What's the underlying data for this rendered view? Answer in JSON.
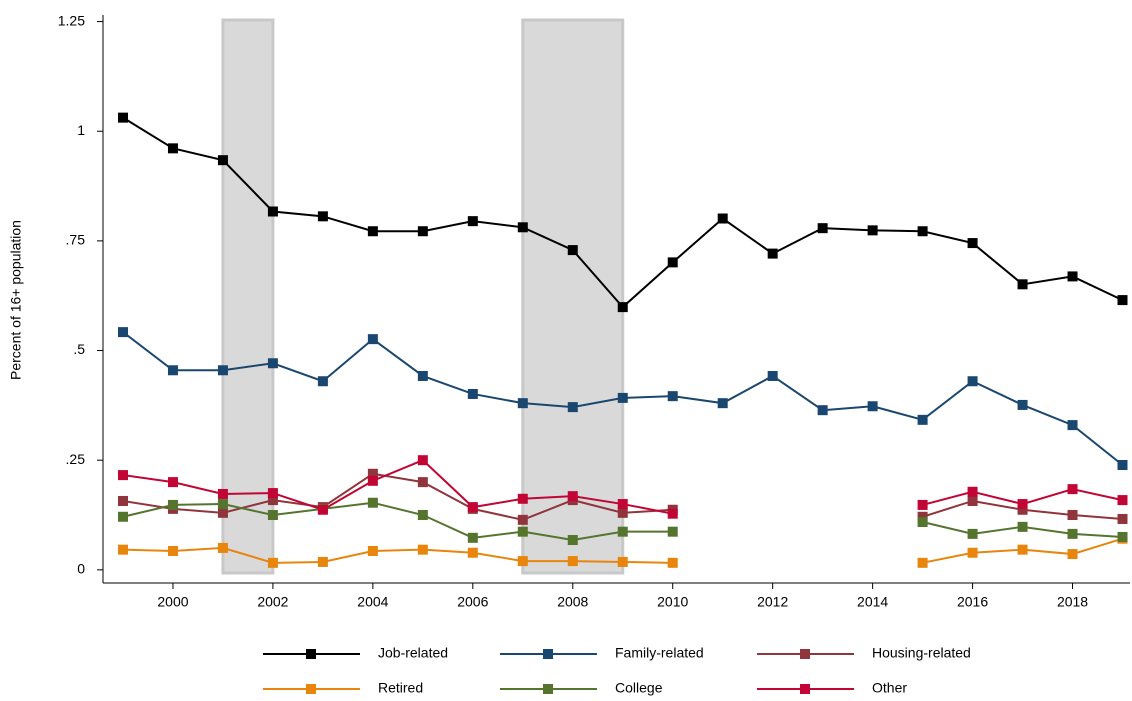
{
  "chart_data": {
    "type": "line",
    "y_label": "Percent of 16+ population",
    "x": [
      1999,
      2000,
      2001,
      2002,
      2003,
      2004,
      2005,
      2006,
      2007,
      2008,
      2009,
      2010,
      2011,
      2012,
      2013,
      2014,
      2015,
      2016,
      2017,
      2018,
      2019
    ],
    "series": [
      {
        "name": "Job-related",
        "color": "#000000",
        "values": [
          1.031,
          0.961,
          0.934,
          0.817,
          0.806,
          0.772,
          0.772,
          0.795,
          0.781,
          0.729,
          0.599,
          0.701,
          0.801,
          0.721,
          0.779,
          0.774,
          0.772,
          0.745,
          0.651,
          0.669,
          0.615
        ]
      },
      {
        "name": "Family-related",
        "color": "#1a476f",
        "values": [
          0.542,
          0.455,
          0.455,
          0.471,
          0.43,
          0.526,
          0.442,
          0.401,
          0.38,
          0.371,
          0.392,
          0.396,
          0.38,
          0.442,
          0.364,
          0.373,
          0.342,
          0.43,
          0.376,
          0.33,
          0.239
        ]
      },
      {
        "name": "Housing-related",
        "color": "#90353b",
        "values": [
          0.157,
          0.139,
          0.13,
          0.159,
          0.143,
          0.219,
          0.2,
          0.139,
          0.114,
          0.159,
          0.13,
          0.137,
          null,
          null,
          null,
          null,
          0.121,
          0.157,
          0.137,
          0.125,
          0.116
        ]
      },
      {
        "name": "Retired",
        "color": "#e8850c",
        "values": [
          0.046,
          0.043,
          0.05,
          0.016,
          0.018,
          0.043,
          0.046,
          0.039,
          0.02,
          0.02,
          0.018,
          0.016,
          null,
          null,
          null,
          null,
          0.016,
          0.039,
          0.046,
          0.036,
          0.071
        ]
      },
      {
        "name": "College",
        "color": "#55752f",
        "values": [
          0.121,
          0.148,
          0.15,
          0.125,
          0.139,
          0.153,
          0.125,
          0.073,
          0.087,
          0.068,
          0.087,
          0.087,
          null,
          null,
          null,
          null,
          0.109,
          0.082,
          0.098,
          0.082,
          0.075
        ]
      },
      {
        "name": "Other",
        "color": "#c10534",
        "values": [
          0.216,
          0.2,
          0.173,
          0.175,
          0.137,
          0.203,
          0.25,
          0.143,
          0.162,
          0.168,
          0.15,
          0.128,
          null,
          null,
          null,
          null,
          0.148,
          0.178,
          0.15,
          0.184,
          0.159
        ]
      }
    ],
    "shaded_periods": [
      [
        2001,
        2002
      ],
      [
        2007,
        2009
      ]
    ],
    "shade_color": "#d9d9d9",
    "xlim": [
      1998.6,
      2019.15
    ],
    "xticks": [
      2000,
      2002,
      2004,
      2006,
      2008,
      2010,
      2012,
      2014,
      2016,
      2018
    ],
    "ylim": [
      -0.03,
      1.265
    ],
    "yticks": [
      0,
      {
        "value": 0.25,
        "label": ".25"
      },
      {
        "value": 0.5,
        "label": ".5"
      },
      {
        "value": 0.75,
        "label": ".75"
      },
      1,
      1.25
    ],
    "grid": false,
    "legend": "bottom"
  }
}
